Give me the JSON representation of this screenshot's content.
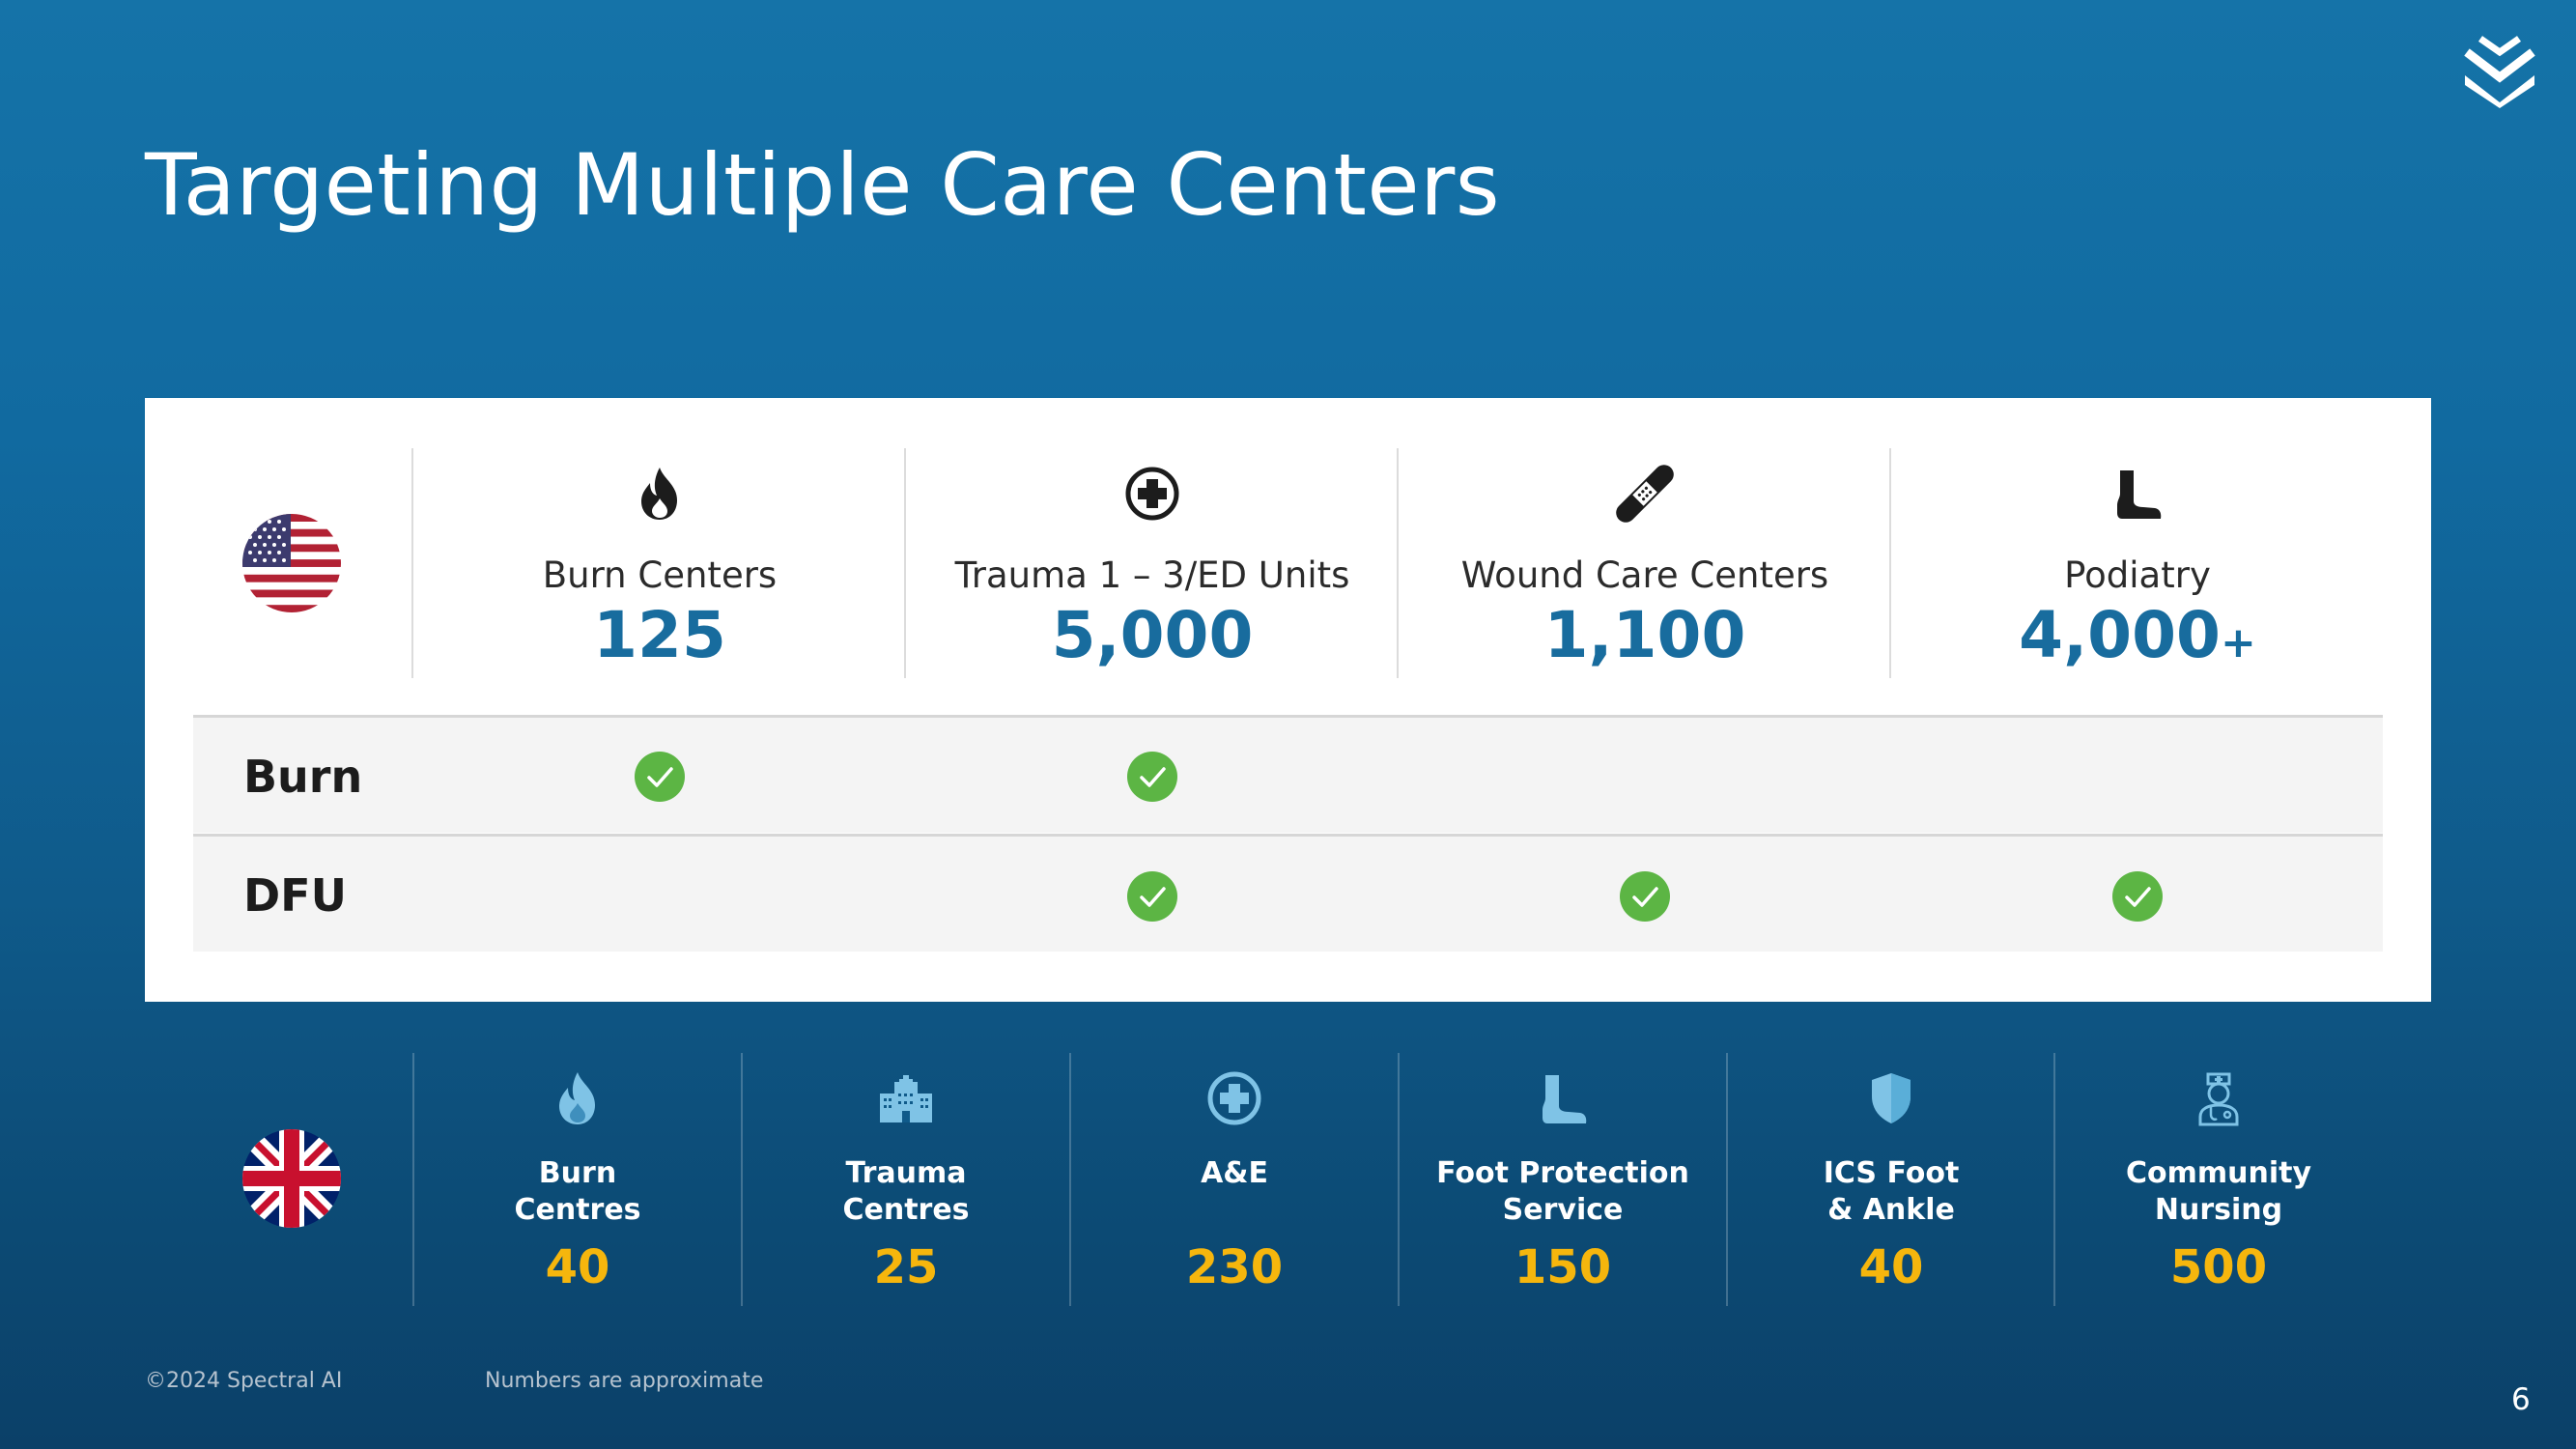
{
  "title": "Targeting Multiple Care Centers",
  "logo_icon": "chevrons-down-icon",
  "us": {
    "flag_icon": "us-flag-icon",
    "columns": [
      {
        "icon": "flame-icon",
        "label": "Burn Centers",
        "value": "125"
      },
      {
        "icon": "medical-cross-icon",
        "label": "Trauma 1 – 3/ED Units",
        "value": "5,000"
      },
      {
        "icon": "bandage-icon",
        "label": "Wound Care Centers",
        "value": "1,100"
      },
      {
        "icon": "foot-icon",
        "label": "Podiatry",
        "value": "4,000",
        "suffix": "+"
      }
    ],
    "rows": [
      {
        "label": "Burn",
        "checks": [
          true,
          true,
          false,
          false
        ]
      },
      {
        "label": "DFU",
        "checks": [
          false,
          true,
          true,
          true
        ]
      }
    ]
  },
  "uk": {
    "flag_icon": "uk-flag-icon",
    "columns": [
      {
        "icon": "flame-icon",
        "label_line1": "Burn",
        "label_line2": "Centres",
        "value": "40"
      },
      {
        "icon": "hospital-building-icon",
        "label_line1": "Trauma",
        "label_line2": "Centres",
        "value": "25"
      },
      {
        "icon": "medical-cross-icon",
        "label_line1": "A&E",
        "label_line2": "",
        "value": "230"
      },
      {
        "icon": "foot-icon",
        "label_line1": "Foot Protection",
        "label_line2": "Service",
        "value": "150"
      },
      {
        "icon": "shield-icon",
        "label_line1": "ICS Foot",
        "label_line2": "& Ankle",
        "value": "40"
      },
      {
        "icon": "nurse-icon",
        "label_line1": "Community",
        "label_line2": "Nursing",
        "value": "500"
      }
    ]
  },
  "footer": {
    "copyright": "©2024 Spectral AI",
    "note": "Numbers are approximate",
    "page_number": "6"
  },
  "colors": {
    "background": "#1573a8",
    "us_value": "#186c9e",
    "uk_value": "#f6b60d",
    "check": "#5cb544"
  }
}
